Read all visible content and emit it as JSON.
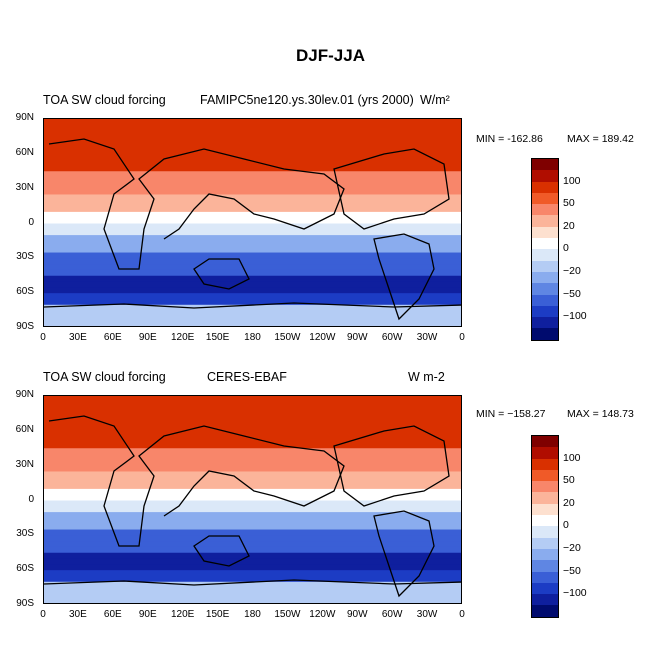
{
  "figure_title": "DJF-JJA",
  "panels": [
    {
      "left_title": "TOA SW cloud forcing",
      "center_title": "FAMIPC5ne120.ys.30lev.01 (yrs 2000)",
      "units": "W/m²",
      "min_label": "MIN = -162.86",
      "max_label": "MAX = 189.42"
    },
    {
      "left_title": "TOA SW cloud forcing",
      "center_title": "CERES-EBAF",
      "units": "W m-2",
      "min_label": "MIN = −158.27",
      "max_label": "MAX = 148.73"
    }
  ],
  "lat_labels": [
    "90N",
    "60N",
    "30N",
    "0",
    "30S",
    "60S",
    "90S"
  ],
  "lon_labels": [
    "0",
    "30E",
    "60E",
    "90E",
    "120E",
    "150E",
    "180",
    "150W",
    "120W",
    "90W",
    "60W",
    "30W",
    "0"
  ],
  "colorbar": {
    "colors": [
      "#7f0000",
      "#b00d00",
      "#d93000",
      "#f05a28",
      "#f8866a",
      "#fbb49a",
      "#fde0cf",
      "#ffffff",
      "#dbe8f8",
      "#b4ccf4",
      "#8aacee",
      "#5f86e3",
      "#3a5fd6",
      "#1c3cc4",
      "#0f1f9e",
      "#000b6e"
    ],
    "labels": [
      "100",
      "50",
      "20",
      "0",
      "−20",
      "−50",
      "−100"
    ]
  },
  "chart_data": {
    "type": "heatmap",
    "title": "DJF-JJA",
    "variable": "TOA SW cloud forcing",
    "x_ticks": [
      "0",
      "30E",
      "60E",
      "90E",
      "120E",
      "150E",
      "180",
      "150W",
      "120W",
      "90W",
      "60W",
      "30W",
      "0"
    ],
    "y_ticks": [
      "90N",
      "60N",
      "30N",
      "0",
      "30S",
      "60S",
      "90S"
    ],
    "colorbar_levels": [
      -100,
      -50,
      -20,
      0,
      20,
      50,
      100
    ],
    "maps": [
      {
        "name": "FAMIPC5ne120.ys.30lev.01 (yrs 2000)",
        "min": -162.86,
        "max": 189.42,
        "units": "W/m²"
      },
      {
        "name": "CERES-EBAF",
        "min": -158.27,
        "max": 148.73,
        "units": "W m-2"
      }
    ]
  }
}
